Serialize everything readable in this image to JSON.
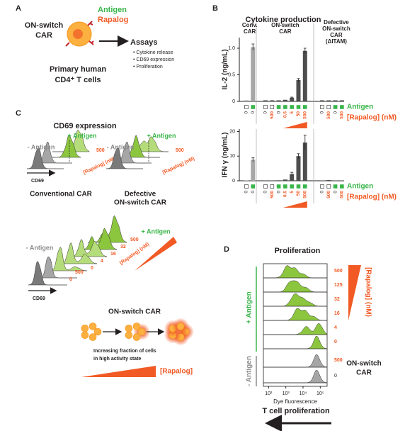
{
  "panel_a": {
    "label": "A",
    "car": [
      "ON-switch",
      "CAR"
    ],
    "antigen": "Antigen",
    "rapalog": "Rapalog",
    "assays_title": "Assays",
    "assays": [
      "• Cytokine release",
      "• CD69 expression",
      "• Proliferation"
    ],
    "cells": [
      "Primary human",
      "CD4⁺ T cells"
    ]
  },
  "panel_b": {
    "label": "B",
    "title": "Cytokine production",
    "charts": [
      {
        "type": "bar",
        "ylabel": "IL-2 (ng/mL)",
        "ylim": [
          0,
          1.2
        ],
        "yticks": [
          0,
          0.5,
          {
            "value": 1,
            "label": "1.0"
          }
        ],
        "antigen_label": "Antigen",
        "rapalog_label": "[Rapalog] (nM)",
        "groups": [
          {
            "label": [
              "Conv.",
              "CAR"
            ],
            "color": "#a6a6a6",
            "antigen": [
              false,
              true
            ],
            "rapalog": [
              0,
              0
            ],
            "values": [
              0.02,
              1.02
            ],
            "errors": [
              null,
              0.06
            ]
          },
          {
            "label": [
              "ON-switch",
              "CAR"
            ],
            "color": "#4d4d4d",
            "antigen": [
              false,
              false,
              true,
              true,
              true,
              true,
              true
            ],
            "rapalog": [
              0,
              500,
              0,
              0.5,
              5,
              50,
              500
            ],
            "values": [
              0.02,
              0.02,
              0.02,
              0.03,
              0.07,
              0.4,
              0.95
            ],
            "errors": [
              null,
              null,
              null,
              null,
              0.01,
              0.03,
              0.05
            ]
          },
          {
            "label": [
              "Defective",
              "ON-switch",
              "CAR",
              "(ΔITAM)"
            ],
            "color": "#4d4d4d",
            "antigen": [
              false,
              false,
              true,
              true
            ],
            "rapalog": [
              0,
              500,
              0,
              500
            ],
            "values": [
              0.02,
              0.02,
              0.02,
              0.02
            ],
            "errors": [
              null,
              null,
              null,
              null
            ]
          }
        ]
      },
      {
        "type": "bar",
        "ylabel": "IFN γ (ng/mL)",
        "ylim": [
          0,
          21
        ],
        "yticks": [
          0,
          10,
          20
        ],
        "antigen_label": "Antigen",
        "rapalog_label": "[Rapalog] (nM)",
        "groups": [
          {
            "color": "#a6a6a6",
            "antigen": [
              false,
              true
            ],
            "rapalog": [
              0,
              0
            ],
            "values": [
              0.1,
              8.5
            ],
            "errors": [
              null,
              0.8
            ]
          },
          {
            "color": "#4d4d4d",
            "antigen": [
              false,
              false,
              true,
              true,
              true,
              true,
              true
            ],
            "rapalog": [
              0,
              500,
              0,
              0.5,
              5,
              50,
              500
            ],
            "values": [
              0.1,
              0.1,
              0.2,
              0.5,
              2.7,
              10,
              15.5
            ],
            "errors": [
              null,
              null,
              null,
              null,
              0.7,
              1,
              3
            ]
          },
          {
            "color": "#4d4d4d",
            "antigen": [
              false,
              false,
              true,
              true
            ],
            "rapalog": [
              0,
              500,
              0,
              500
            ],
            "values": [
              0.1,
              0.3,
              0.1,
              0.1
            ],
            "errors": [
              null,
              null,
              null,
              null
            ]
          }
        ]
      }
    ]
  },
  "panel_c": {
    "label": "C",
    "title": "CD69 expression",
    "small": [
      {
        "name": [
          "Conventional CAR"
        ],
        "minus": "- Antigen",
        "plus": "+ Antigen",
        "axis": "CD69",
        "levels": [
          500
        ],
        "rapalog_label": "[Rapalog] (nM)"
      },
      {
        "name": [
          "Defective",
          "ON-switch CAR"
        ],
        "minus": "- Antigen",
        "plus": "+ Antigen",
        "levels": [
          500
        ],
        "rapalog_label": "[Rapalog] (nM)"
      }
    ],
    "on_switch": {
      "name": "ON-switch CAR",
      "minus": "- Antigen",
      "plus": "+ Antigen",
      "axis": "CD69",
      "plus_levels": [
        500,
        32,
        16,
        4,
        0
      ],
      "minus_levels": [
        0,
        500
      ],
      "rapalog_label": "[Rapalog] (nM)"
    },
    "note": [
      "Increasing fraction of cells",
      "in high activity state"
    ],
    "rapalog": "[Rapalog]"
  },
  "panel_d": {
    "label": "D",
    "title": "Proliferation",
    "plus": "+ Antigen",
    "minus": "- Antigen",
    "plus_levels": [
      500,
      125,
      32,
      16,
      4,
      0
    ],
    "minus_levels": [
      500,
      0
    ],
    "rapalog_label": "[Rapalog] (nM)",
    "xlabel": "Dye fluorescence",
    "xscale": "log",
    "xlim": [
      50,
      250000
    ],
    "xticks": [
      {
        "value": 100,
        "label": "10²"
      },
      {
        "value": 1000,
        "label": "10³"
      },
      {
        "value": 10000,
        "label": "10⁴"
      },
      {
        "value": 100000,
        "label": "10⁵"
      }
    ],
    "car": [
      "ON-switch",
      "CAR"
    ],
    "footer": "T cell proliferation"
  }
}
